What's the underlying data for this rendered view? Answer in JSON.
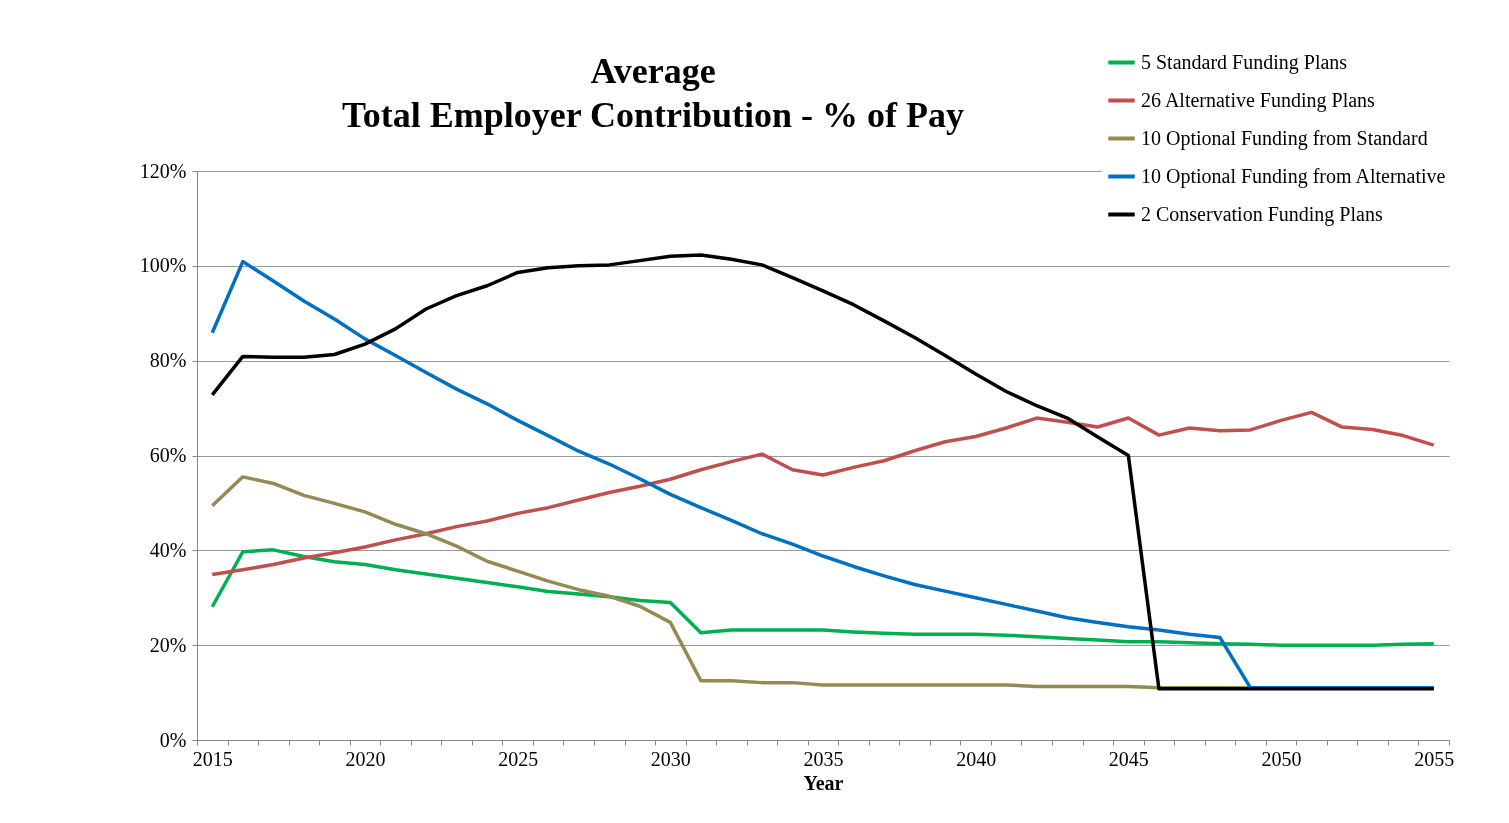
{
  "chart_data": {
    "type": "line",
    "title": "Average\nTotal Employer Contribution - % of Pay",
    "xlabel": "Year",
    "categories": [
      "2015",
      null,
      null,
      null,
      null,
      "2020",
      null,
      null,
      null,
      null,
      "2025",
      null,
      null,
      null,
      null,
      "2030",
      null,
      null,
      null,
      null,
      "2035",
      null,
      null,
      null,
      null,
      "2040",
      null,
      null,
      null,
      null,
      "2045",
      null,
      null,
      null,
      null,
      "2050",
      null,
      null,
      null,
      null,
      "2055"
    ],
    "series": [
      {
        "name": "5 Standard Funding Plans",
        "color": "#00b050",
        "values": [
          28.1,
          39.7,
          40.1,
          38.7,
          37.6,
          37.0,
          35.9,
          35.0,
          34.1,
          33.2,
          32.3,
          31.3,
          30.8,
          30.2,
          29.4,
          29.0,
          22.6,
          23.2,
          23.2,
          23.2,
          23.2,
          22.8,
          22.5,
          22.3,
          22.3,
          22.3,
          22.1,
          21.8,
          21.4,
          21.1,
          20.7,
          20.7,
          20.5,
          20.3,
          20.2,
          20.0,
          20.0,
          20.0,
          20.0,
          20.2,
          20.3
        ]
      },
      {
        "name": "26 Alternative Funding Plans",
        "color": "#c0504d",
        "values": [
          34.9,
          35.9,
          37.0,
          38.4,
          39.5,
          40.7,
          42.2,
          43.5,
          45.0,
          46.2,
          47.8,
          49.0,
          50.6,
          52.2,
          53.5,
          55.0,
          57.0,
          58.7,
          60.3,
          57.0,
          55.9,
          57.5,
          58.9,
          61.0,
          62.9,
          64.0,
          65.8,
          67.9,
          67.0,
          66.0,
          67.9,
          64.3,
          65.8,
          65.2,
          65.4,
          67.4,
          69.1,
          66.0,
          65.5,
          64.2,
          62.2
        ]
      },
      {
        "name": "10 Optional Funding from Standard",
        "color": "#948a54",
        "values": [
          49.4,
          55.5,
          54.1,
          51.6,
          49.9,
          48.1,
          45.5,
          43.5,
          40.9,
          37.7,
          35.6,
          33.5,
          31.7,
          30.3,
          28.2,
          24.8,
          12.5,
          12.5,
          12.1,
          12.1,
          11.6,
          11.6,
          11.6,
          11.6,
          11.6,
          11.6,
          11.6,
          11.3,
          11.3,
          11.3,
          11.3,
          11.0,
          11.0,
          11.0,
          11.0,
          11.0,
          11.0,
          11.0,
          11.0,
          11.0,
          11.0
        ]
      },
      {
        "name": "10 Optional Funding from Alternative",
        "color": "#0070c0",
        "values": [
          85.9,
          100.9,
          96.8,
          92.6,
          88.8,
          84.6,
          81.1,
          77.5,
          74.0,
          70.9,
          67.4,
          64.2,
          60.9,
          58.2,
          55.1,
          51.8,
          49.0,
          46.3,
          43.5,
          41.3,
          38.8,
          36.6,
          34.6,
          32.8,
          31.4,
          30.0,
          28.6,
          27.2,
          25.8,
          24.8,
          23.9,
          23.2,
          22.3,
          21.6,
          11.0,
          11.0,
          11.0,
          11.0,
          11.0,
          11.0,
          11.0
        ]
      },
      {
        "name": "2 Conservation Funding Plans",
        "color": "#000000",
        "values": [
          72.8,
          80.9,
          80.7,
          80.7,
          81.3,
          83.5,
          86.7,
          90.9,
          93.7,
          95.8,
          98.6,
          99.6,
          100.0,
          100.2,
          101.1,
          102.0,
          102.3,
          101.4,
          100.2,
          97.5,
          94.7,
          91.8,
          88.4,
          84.9,
          81.1,
          77.2,
          73.5,
          70.5,
          67.9,
          63.9,
          60.0,
          10.8,
          10.8,
          10.8,
          10.8,
          10.8,
          10.8,
          10.8,
          10.8,
          10.8,
          10.8
        ]
      }
    ],
    "ylim": [
      0,
      120
    ],
    "yticks": [
      {
        "value": 0,
        "label": "0%"
      },
      {
        "value": 20,
        "label": "20%"
      },
      {
        "value": 40,
        "label": "40%"
      },
      {
        "value": 60,
        "label": "60%"
      },
      {
        "value": 80,
        "label": "80%"
      },
      {
        "value": 100,
        "label": "100%"
      },
      {
        "value": 120,
        "label": "120%"
      }
    ],
    "grid": "y",
    "legend": "top right",
    "marker": "none",
    "line_style": "solid"
  }
}
